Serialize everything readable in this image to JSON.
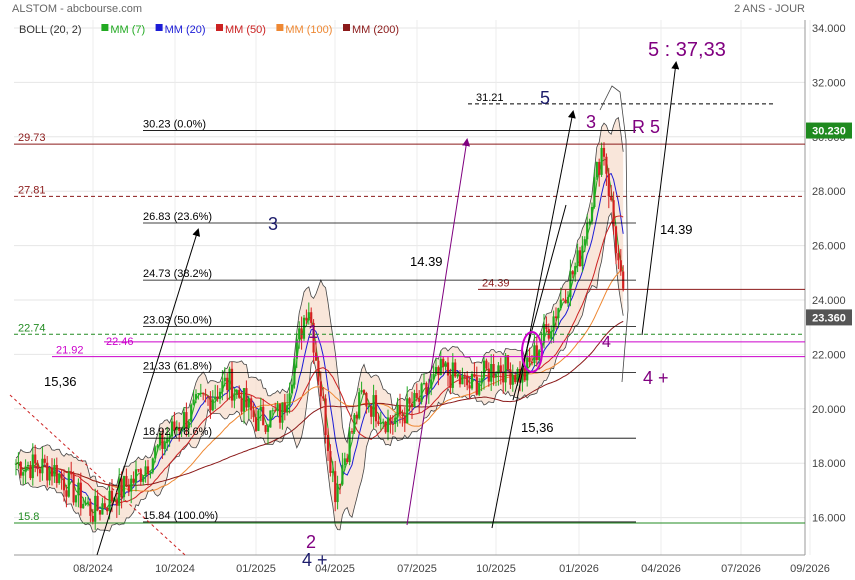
{
  "header": {
    "title": "ALSTOM - abcbourse.com",
    "period": "2 ANS - JOUR"
  },
  "legend": [
    {
      "label": "BOLL (20, 2)",
      "color": "#333333"
    },
    {
      "label": "MM (7)",
      "color": "#22aa22"
    },
    {
      "label": "MM (20)",
      "color": "#1c1cd6"
    },
    {
      "label": "MM (50)",
      "color": "#cc2222"
    },
    {
      "label": "MM (100)",
      "color": "#ee8833"
    },
    {
      "label": "MM (200)",
      "color": "#8b1a1a"
    }
  ],
  "chart_data": {
    "type": "candlestick",
    "x_ticks": [
      "08/2024",
      "10/2024",
      "01/2025",
      "04/2025",
      "07/2025",
      "10/2025",
      "01/2026",
      "04/2026",
      "07/2026",
      "09/2026"
    ],
    "y_ticks": [
      "34.000",
      "32.000",
      "30.000",
      "28.000",
      "26.000",
      "24.000",
      "22.000",
      "20.000",
      "18.000",
      "16.000"
    ],
    "y_range": [
      15.5,
      34.0
    ],
    "last_price_label": "30.230",
    "current_price_label": "23.360",
    "price_path": [
      [
        "06/2024",
        18.0
      ],
      [
        "07/2024",
        17.8
      ],
      [
        "08/2024",
        16.2
      ],
      [
        "09/2024",
        17.4
      ],
      [
        "10/2024",
        19.3
      ],
      [
        "11/2024",
        20.2
      ],
      [
        "12/2024",
        21.0
      ],
      [
        "01/2025",
        19.6
      ],
      [
        "02/2025",
        19.8
      ],
      [
        "03/2025",
        24.0
      ],
      [
        "04/2025",
        17.0
      ],
      [
        "05/2025",
        20.5
      ],
      [
        "06/2025",
        19.5
      ],
      [
        "07/2025",
        20.2
      ],
      [
        "08/2025",
        21.4
      ],
      [
        "09/2025",
        20.8
      ],
      [
        "10/2025",
        21.6
      ],
      [
        "11/2025",
        21.2
      ],
      [
        "12/2025",
        23.2
      ],
      [
        "01/2026",
        25.5
      ],
      [
        "02/2026",
        29.8
      ],
      [
        "03/2026",
        23.4
      ]
    ],
    "fibonacci": [
      {
        "label": "30.23  (0.0%)",
        "value": 30.23
      },
      {
        "label": "26.83  (23.6%)",
        "value": 26.83
      },
      {
        "label": "24.73  (38.2%)",
        "value": 24.73
      },
      {
        "label": "23.03  (50.0%)",
        "value": 23.03
      },
      {
        "label": "21.33  (61.8%)",
        "value": 21.33
      },
      {
        "label": "18.92  (78.6%)",
        "value": 18.92
      },
      {
        "label": "15.84  (100.0%)",
        "value": 15.84
      }
    ],
    "horizontal_levels": [
      {
        "label": "29.73",
        "value": 29.73,
        "color": "#8b1a1a",
        "style": "solid"
      },
      {
        "label": "27.81",
        "value": 27.81,
        "color": "#8b1a1a",
        "style": "dashed"
      },
      {
        "label": "24.39",
        "value": 24.39,
        "color": "#8b1a1a",
        "style": "solid"
      },
      {
        "label": "22.74",
        "value": 22.74,
        "color": "#228b22",
        "style": "dashed"
      },
      {
        "label": "22.46",
        "value": 22.46,
        "color": "#cc00cc",
        "style": "solid"
      },
      {
        "label": "21.92",
        "value": 21.92,
        "color": "#cc00cc",
        "style": "solid"
      },
      {
        "label": "15.8",
        "value": 15.8,
        "color": "#228b22",
        "style": "solid"
      },
      {
        "label": "31.21",
        "value": 31.21,
        "color": "#000000",
        "style": "dashed"
      }
    ],
    "annotations": {
      "target": "5 : 37,33",
      "r5": "R 5",
      "wave5": "5",
      "wave3_top": "3",
      "wave3_left": "3",
      "wave1": "1",
      "wave2": "2",
      "wave4": "4",
      "wave4plus": "4 +",
      "wave4plus_bottom": "4 +",
      "measure_a": "14.39",
      "measure_b": "14.39",
      "measure_c": "15,36",
      "measure_d": "15,36"
    }
  }
}
